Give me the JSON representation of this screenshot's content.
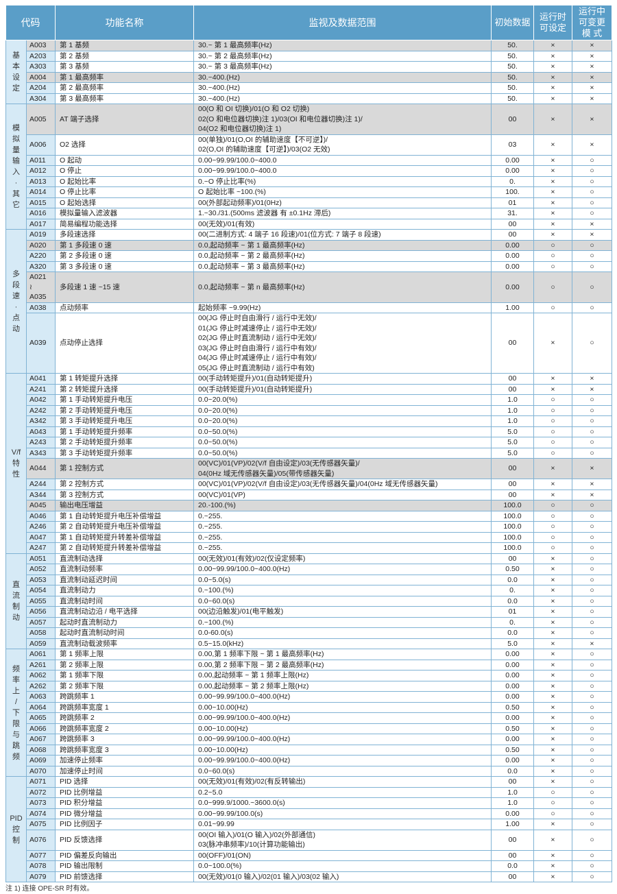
{
  "header": {
    "code": "代码",
    "name": "功能名称",
    "range": "监视及数据范围",
    "initial": "初始数据",
    "run_set": "运行时\n可设定",
    "run_change": "运行中\n可变更\n模 式"
  },
  "colors": {
    "header_bg": "#5a9ec8",
    "group_bg": "#d6eaf6",
    "grid": "#7fb2d4",
    "highlight_row": "#d9d9d9"
  },
  "groups": [
    {
      "label": "基\n本\n设\n定",
      "rows": [
        {
          "code": "A003",
          "name": "第 1 基频",
          "range": "30.~ 第 1 最高频率(Hz)",
          "init": "50.",
          "set": "×",
          "change": "×",
          "grey": true
        },
        {
          "code": "A203",
          "name": "第 2 基频",
          "range": "30.~ 第 2 最高频率(Hz)",
          "init": "50.",
          "set": "×",
          "change": "×"
        },
        {
          "code": "A303",
          "name": "第 3 基频",
          "range": "30.~ 第 3 最高频率(Hz)",
          "init": "50.",
          "set": "×",
          "change": "×"
        },
        {
          "code": "A004",
          "name": "第 1 最高频率",
          "range": "30.~400.(Hz)",
          "init": "50.",
          "set": "×",
          "change": "×",
          "grey": true
        },
        {
          "code": "A204",
          "name": "第 2 最高频率",
          "range": "30.~400.(Hz)",
          "init": "50.",
          "set": "×",
          "change": "×"
        },
        {
          "code": "A304",
          "name": "第 3 最高频率",
          "range": "30.~400.(Hz)",
          "init": "50.",
          "set": "×",
          "change": "×"
        }
      ]
    },
    {
      "label": "模\n拟\n量\n输\n入\n·\n其\n它",
      "rows": [
        {
          "code": "A005",
          "name": "AT 端子选择",
          "range": "00(O 和 OI 切换)/01(O 和 O2 切换)\n02(O 和电位器切换)注 1)/03(OI 和电位器切换)注 1)/\n04(O2 和电位器切换)注 1)",
          "init": "00",
          "set": "×",
          "change": "×",
          "grey": true,
          "lines": 3
        },
        {
          "code": "A006",
          "name": "O2 选择",
          "range": "00(单独)/01(O,OI 的辅助速度【不可逆】)/\n02(O,OI 的辅助速度【可逆】)/03(O2 无效)",
          "init": "03",
          "set": "×",
          "change": "×",
          "lines": 2
        },
        {
          "code": "A011",
          "name": "O 起动",
          "range": "0.00~99.99/100.0~400.0",
          "init": "0.00",
          "set": "×",
          "change": "○"
        },
        {
          "code": "A012",
          "name": "O 停止",
          "range": "0.00~99.99/100.0~400.0",
          "init": "0.00",
          "set": "×",
          "change": "○"
        },
        {
          "code": "A013",
          "name": "O 起始比率",
          "range": "0.~O 停止比率(%)",
          "init": "0.",
          "set": "×",
          "change": "○"
        },
        {
          "code": "A014",
          "name": "O 停止比率",
          "range": "O 起始比率 ~100.(%)",
          "init": "100.",
          "set": "×",
          "change": "○"
        },
        {
          "code": "A015",
          "name": "O 起始选择",
          "range": "00(外部起动频率)/01(0Hz)",
          "init": "01",
          "set": "×",
          "change": "○"
        },
        {
          "code": "A016",
          "name": "模拟量输入滤波器",
          "range": "1.~30./31.(500ms 滤波器 有 ±0.1Hz 滞后)",
          "init": "31.",
          "set": "×",
          "change": "○"
        },
        {
          "code": "A017",
          "name": "简易编程功能选择",
          "range": "00(无效)/01(有效)",
          "init": "00",
          "set": "×",
          "change": "×"
        }
      ]
    },
    {
      "label": "多\n段\n速\n·\n点\n动",
      "rows": [
        {
          "code": "A019",
          "name": "多段速选择",
          "range": "00(二进制方式: 4 端子 16 段速)/01(位方式: 7 端子 8 段速)",
          "init": "00",
          "set": "×",
          "change": "×"
        },
        {
          "code": "A020",
          "name": "第 1 多段速 0 速",
          "range": "0.0,起动频率 ~ 第 1 最高频率(Hz)",
          "init": "0.00",
          "set": "○",
          "change": "○",
          "grey": true
        },
        {
          "code": "A220",
          "name": "第 2 多段速 0 速",
          "range": "0.0,起动频率 ~ 第 2 最高频率(Hz)",
          "init": "0.00",
          "set": "○",
          "change": "○"
        },
        {
          "code": "A320",
          "name": "第 3 多段速 0 速",
          "range": "0.0,起动频率 ~ 第 3 最高频率(Hz)",
          "init": "0.00",
          "set": "○",
          "change": "○"
        },
        {
          "code": "A021\n≀\nA035",
          "name": "多段速 1 速 ~15 速",
          "range": "0.0,起动频率 ~ 第 n 最高频率(Hz)",
          "init": "0.00",
          "set": "○",
          "change": "○",
          "grey": true,
          "lines": 3
        },
        {
          "code": "A038",
          "name": "点动频率",
          "range": "起始频率 ~9.99(Hz)",
          "init": "1.00",
          "set": "○",
          "change": "○"
        },
        {
          "code": "A039",
          "name": "点动停止选择",
          "range": "00(JG 停止时自由滑行 / 运行中无效)/\n01(JG 停止时减速停止 / 运行中无效)/\n02(JG 停止时直流制动 / 运行中无效)/\n03(JG 停止时自由滑行 / 运行中有效)/\n04(JG 停止时减速停止 / 运行中有效)/\n05(JG 停止时直流制动 / 运行中有效)",
          "init": "00",
          "set": "×",
          "change": "○",
          "lines": 6
        }
      ]
    },
    {
      "label": "V/f\n特\n性",
      "rows": [
        {
          "code": "A041",
          "name": "第 1 转矩提升选择",
          "range": "00(手动转矩提升)/01(自动转矩提升)",
          "init": "00",
          "set": "×",
          "change": "×"
        },
        {
          "code": "A241",
          "name": "第 2 转矩提升选择",
          "range": "00(手动转矩提升)/01(自动转矩提升)",
          "init": "00",
          "set": "×",
          "change": "×"
        },
        {
          "code": "A042",
          "name": "第 1 手动转矩提升电压",
          "range": "0.0~20.0(%)",
          "init": "1.0",
          "set": "○",
          "change": "○"
        },
        {
          "code": "A242",
          "name": "第 2 手动转矩提升电压",
          "range": "0.0~20.0(%)",
          "init": "1.0",
          "set": "○",
          "change": "○"
        },
        {
          "code": "A342",
          "name": "第 3 手动转矩提升电压",
          "range": "0.0~20.0(%)",
          "init": "1.0",
          "set": "○",
          "change": "○"
        },
        {
          "code": "A043",
          "name": "第 1 手动转矩提升频率",
          "range": "0.0~50.0(%)",
          "init": "5.0",
          "set": "○",
          "change": "○"
        },
        {
          "code": "A243",
          "name": "第 2 手动转矩提升频率",
          "range": "0.0~50.0(%)",
          "init": "5.0",
          "set": "○",
          "change": "○"
        },
        {
          "code": "A343",
          "name": "第 3 手动转矩提升频率",
          "range": "0.0~50.0(%)",
          "init": "5.0",
          "set": "○",
          "change": "○"
        },
        {
          "code": "A044",
          "name": "第 1 控制方式",
          "range": "00(VC)/01(VP)/02(V/f 自由设定)/03(无传感器矢量)/\n04(0Hz 域无传感器矢量)/05(带传感器矢量)",
          "init": "00",
          "set": "×",
          "change": "×",
          "grey": true,
          "lines": 2
        },
        {
          "code": "A244",
          "name": "第 2 控制方式",
          "range": "00(VC)/01(VP)/02(V/f 自由设定)/03(无传感器矢量)/04(0Hz 域无传感器矢量)",
          "init": "00",
          "set": "×",
          "change": "×"
        },
        {
          "code": "A344",
          "name": "第 3 控制方式",
          "range": "00(VC)/01(VP)",
          "init": "00",
          "set": "×",
          "change": "×"
        },
        {
          "code": "A045",
          "name": "输出电压增益",
          "range": "20.-100.(%)",
          "init": "100.0",
          "set": "○",
          "change": "○",
          "grey": true
        },
        {
          "code": "A046",
          "name": "第 1 自动转矩提升电压补偿增益",
          "range": "0.~255.",
          "init": "100.0",
          "set": "○",
          "change": "○"
        },
        {
          "code": "A246",
          "name": "第 2 自动转矩提升电压补偿增益",
          "range": "0.~255.",
          "init": "100.0",
          "set": "○",
          "change": "○"
        },
        {
          "code": "A047",
          "name": "第 1 自动转矩提升转差补偿增益",
          "range": "0.~255.",
          "init": "100.0",
          "set": "○",
          "change": "○"
        },
        {
          "code": "A247",
          "name": "第 2 自动转矩提升转差补偿增益",
          "range": "0.~255.",
          "init": "100.0",
          "set": "○",
          "change": "○"
        }
      ]
    },
    {
      "label": "直\n流\n制\n动",
      "rows": [
        {
          "code": "A051",
          "name": "直流制动选择",
          "range": "00(无效)/01(有效)/02(仅设定频率)",
          "init": "00",
          "set": "×",
          "change": "○"
        },
        {
          "code": "A052",
          "name": "直流制动频率",
          "range": "0.00~99.99/100.0~400.0(Hz)",
          "init": "0.50",
          "set": "×",
          "change": "○"
        },
        {
          "code": "A053",
          "name": "直流制动延迟时间",
          "range": "0.0~5.0(s)",
          "init": "0.0",
          "set": "×",
          "change": "○"
        },
        {
          "code": "A054",
          "name": "直流制动力",
          "range": "0.~100.(%)",
          "init": "0.",
          "set": "×",
          "change": "○"
        },
        {
          "code": "A055",
          "name": "直流制动时间",
          "range": "0.0~60.0(s)",
          "init": "0.0",
          "set": "×",
          "change": "○"
        },
        {
          "code": "A056",
          "name": "直流制动边沿 / 电平选择",
          "range": "00(边沿触发)/01(电平触发)",
          "init": "01",
          "set": "×",
          "change": "○"
        },
        {
          "code": "A057",
          "name": "起动时直流制动力",
          "range": "0.~100.(%)",
          "init": "0.",
          "set": "×",
          "change": "○"
        },
        {
          "code": "A058",
          "name": "起动时直流制动时间",
          "range": "0.0-60.0(s)",
          "init": "0.0",
          "set": "×",
          "change": "○"
        },
        {
          "code": "A059",
          "name": "直流制动载波频率",
          "range": "0.5~15.0(kHz)",
          "init": "5.0",
          "set": "×",
          "change": "×"
        }
      ]
    },
    {
      "label": "频\n率\n上\n/\n下\n限\n与\n跳\n频",
      "rows": [
        {
          "code": "A061",
          "name": "第 1 频率上限",
          "range": "0.00,第 1 频率下限 ~ 第 1 最高频率(Hz)",
          "init": "0.00",
          "set": "×",
          "change": "○"
        },
        {
          "code": "A261",
          "name": "第 2 频率上限",
          "range": "0.00,第 2 频率下限 ~ 第 2 最高频率(Hz)",
          "init": "0.00",
          "set": "×",
          "change": "○"
        },
        {
          "code": "A062",
          "name": "第 1 频率下限",
          "range": "0.00,起动频率 ~ 第 1 频率上限(Hz)",
          "init": "0.00",
          "set": "×",
          "change": "○"
        },
        {
          "code": "A262",
          "name": "第 2 频率下限",
          "range": "0.00,起动频率 ~ 第 2 频率上限(Hz)",
          "init": "0.00",
          "set": "×",
          "change": "○"
        },
        {
          "code": "A063",
          "name": "跨跳频率 1",
          "range": "0.00~99.99/100.0~400.0(Hz)",
          "init": "0.00",
          "set": "×",
          "change": "○"
        },
        {
          "code": "A064",
          "name": "跨跳频率宽度 1",
          "range": "0.00~10.00(Hz)",
          "init": "0.50",
          "set": "×",
          "change": "○"
        },
        {
          "code": "A065",
          "name": "跨跳频率 2",
          "range": "0.00~99.99/100.0~400.0(Hz)",
          "init": "0.00",
          "set": "×",
          "change": "○"
        },
        {
          "code": "A066",
          "name": "跨跳频率宽度 2",
          "range": "0.00~10.00(Hz)",
          "init": "0.50",
          "set": "×",
          "change": "○"
        },
        {
          "code": "A067",
          "name": "跨跳频率 3",
          "range": "0.00~99.99/100.0~400.0(Hz)",
          "init": "0.00",
          "set": "×",
          "change": "○"
        },
        {
          "code": "A068",
          "name": "跨跳频率宽度 3",
          "range": "0.00~10.00(Hz)",
          "init": "0.50",
          "set": "×",
          "change": "○"
        },
        {
          "code": "A069",
          "name": "加速停止频率",
          "range": "0.00~99.99/100.0~400.0(Hz)",
          "init": "0.00",
          "set": "×",
          "change": "○"
        },
        {
          "code": "A070",
          "name": "加速停止时间",
          "range": "0.0~60.0(s)",
          "init": "0.0",
          "set": "×",
          "change": "○"
        }
      ]
    },
    {
      "label": "PID\n控\n制",
      "rows": [
        {
          "code": "A071",
          "name": "PID 选择",
          "range": "00(无效)/01(有效)/02(有反转输出)",
          "init": "00",
          "set": "×",
          "change": "○"
        },
        {
          "code": "A072",
          "name": "PID 比例增益",
          "range": "0.2~5.0",
          "init": "1.0",
          "set": "○",
          "change": "○"
        },
        {
          "code": "A073",
          "name": "PID 积分增益",
          "range": "0.0~999.9/1000.~3600.0(s)",
          "init": "1.0",
          "set": "○",
          "change": "○"
        },
        {
          "code": "A074",
          "name": "PID 微分增益",
          "range": "0.00~99.99/100.0(s)",
          "init": "0.00",
          "set": "○",
          "change": "○"
        },
        {
          "code": "A075",
          "name": "PID 比例因子",
          "range": "0.01~99.99",
          "init": "1.00",
          "set": "×",
          "change": "○"
        },
        {
          "code": "A076",
          "name": "PID 反馈选择",
          "range": "00(OI 输入)/01(O 输入)/02(外部通信)\n03(脉冲串频率)/10(计算功能输出)",
          "init": "00",
          "set": "×",
          "change": "○",
          "lines": 2
        },
        {
          "code": "A077",
          "name": "PID 偏差反向输出",
          "range": "00(OFF)/01(ON)",
          "init": "00",
          "set": "×",
          "change": "○"
        },
        {
          "code": "A078",
          "name": "PID 输出限制",
          "range": "0.0~100.0(%)",
          "init": "0.0",
          "set": "×",
          "change": "○"
        },
        {
          "code": "A079",
          "name": "PID 前馈选择",
          "range": "00(无效)/01(0 输入)/02(01 输入)/03(02 输入)",
          "init": "00",
          "set": "×",
          "change": "○"
        }
      ]
    }
  ],
  "footnote": "注 1)   连接 OPE-SR 时有效。"
}
